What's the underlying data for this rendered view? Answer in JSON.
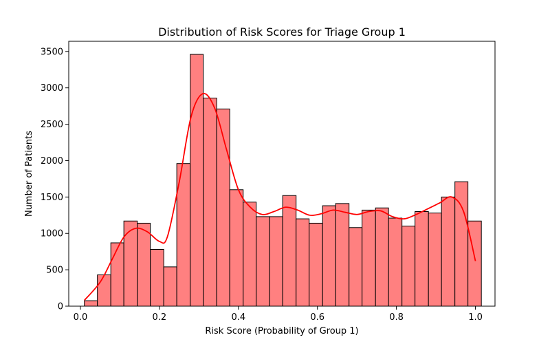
{
  "chart_data": {
    "type": "bar",
    "title": "Distribution of Risk Scores for Triage Group 1",
    "xlabel": "Risk Score (Probability of Group 1)",
    "ylabel": "Number of Patients",
    "xlim": [
      -0.0295,
      1.0495
    ],
    "ylim": [
      0,
      3640
    ],
    "x_ticks": [
      0.0,
      0.2,
      0.4,
      0.6,
      0.8,
      1.0
    ],
    "x_tick_labels": [
      "0.0",
      "0.2",
      "0.4",
      "0.6",
      "0.8",
      "1.0"
    ],
    "y_ticks": [
      0,
      500,
      1000,
      1500,
      2000,
      2500,
      3000,
      3500
    ],
    "y_tick_labels": [
      "0",
      "500",
      "1000",
      "1500",
      "2000",
      "2500",
      "3000",
      "3500"
    ],
    "bin_edges": [
      0.01,
      0.043,
      0.077,
      0.11,
      0.144,
      0.177,
      0.211,
      0.244,
      0.278,
      0.311,
      0.345,
      0.378,
      0.412,
      0.445,
      0.479,
      0.512,
      0.546,
      0.579,
      0.613,
      0.646,
      0.68,
      0.713,
      0.747,
      0.78,
      0.814,
      0.847,
      0.881,
      0.914,
      0.948,
      0.981,
      1.015
    ],
    "values": [
      75,
      430,
      870,
      1170,
      1140,
      780,
      540,
      1960,
      3460,
      2860,
      2710,
      1600,
      1430,
      1230,
      1230,
      1520,
      1200,
      1140,
      1380,
      1410,
      1080,
      1320,
      1350,
      1210,
      1100,
      1300,
      1280,
      1500,
      1710,
      1170
    ],
    "kde": {
      "x": [
        0.01,
        0.05,
        0.08,
        0.11,
        0.14,
        0.17,
        0.2,
        0.22,
        0.25,
        0.28,
        0.31,
        0.34,
        0.37,
        0.4,
        0.43,
        0.46,
        0.49,
        0.52,
        0.55,
        0.58,
        0.61,
        0.64,
        0.67,
        0.7,
        0.73,
        0.76,
        0.79,
        0.82,
        0.85,
        0.88,
        0.91,
        0.94,
        0.97,
        1.0
      ],
      "y": [
        80,
        330,
        640,
        950,
        1070,
        1020,
        890,
        950,
        1700,
        2600,
        2920,
        2720,
        2150,
        1600,
        1360,
        1260,
        1300,
        1360,
        1320,
        1250,
        1270,
        1320,
        1290,
        1260,
        1300,
        1310,
        1230,
        1200,
        1260,
        1340,
        1420,
        1500,
        1300,
        620
      ]
    },
    "colors": {
      "bar_fill": "#ff8080",
      "bar_edge": "#000000",
      "kde_line": "#ff0000"
    },
    "grid": false,
    "legend": "none"
  }
}
